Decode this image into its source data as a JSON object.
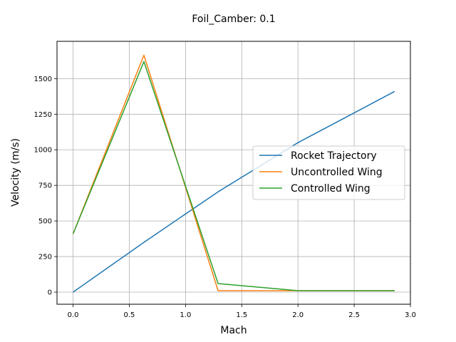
{
  "chart_data": {
    "type": "line",
    "title": "Foil_Camber: 0.1",
    "xlabel": "Mach",
    "ylabel": "Velocity (m/s)",
    "xlim": [
      -0.143,
      3.0
    ],
    "ylim": [
      -85,
      1762
    ],
    "x_ticks": [
      0.0,
      0.5,
      1.0,
      1.5,
      2.0,
      2.5,
      3.0
    ],
    "x_tick_labels": [
      "0.0",
      "0.5",
      "1.0",
      "1.5",
      "2.0",
      "2.5",
      "3.0"
    ],
    "y_ticks": [
      0,
      250,
      500,
      750,
      1000,
      1250,
      1500
    ],
    "y_tick_labels": [
      "0",
      "250",
      "500",
      "750",
      "1000",
      "1250",
      "1500"
    ],
    "grid": true,
    "legend_position": "center-right",
    "series": [
      {
        "name": "Rocket Trajectory",
        "color": "#1f77b4",
        "x": [
          0.0,
          0.63,
          1.29,
          2.0,
          2.86
        ],
        "y": [
          0,
          350,
          705,
          1050,
          1410
        ]
      },
      {
        "name": "Uncontrolled Wing",
        "color": "#ff7f0e",
        "x": [
          0.0,
          0.63,
          1.29,
          2.0,
          2.86
        ],
        "y": [
          410,
          1665,
          10,
          10,
          10
        ]
      },
      {
        "name": "Controlled Wing",
        "color": "#2ca02c",
        "x": [
          0.0,
          0.63,
          1.29,
          2.0,
          2.86
        ],
        "y": [
          410,
          1620,
          60,
          10,
          10
        ]
      }
    ]
  }
}
